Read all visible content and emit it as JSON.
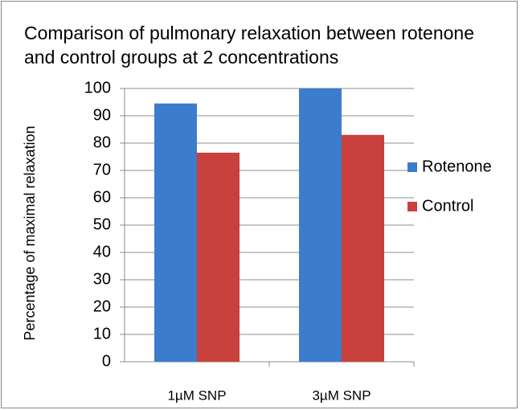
{
  "chart_data": {
    "type": "bar",
    "title": "Comparison of pulmonary relaxation between rotenone and control groups at 2 concentrations",
    "y_label": "Percentage of maximal relaxation",
    "categories": [
      "1µM SNP",
      "3µM SNP"
    ],
    "series": [
      {
        "name": "Rotenone",
        "color": "#3c7ccc",
        "values": [
          94.5,
          100
        ]
      },
      {
        "name": "Control",
        "color": "#c8413c",
        "values": [
          76.5,
          83
        ]
      }
    ],
    "ylim": [
      0,
      100
    ],
    "yticks": [
      0,
      10,
      20,
      30,
      40,
      50,
      60,
      70,
      80,
      90,
      100
    ],
    "grid": true,
    "legend": "right"
  }
}
